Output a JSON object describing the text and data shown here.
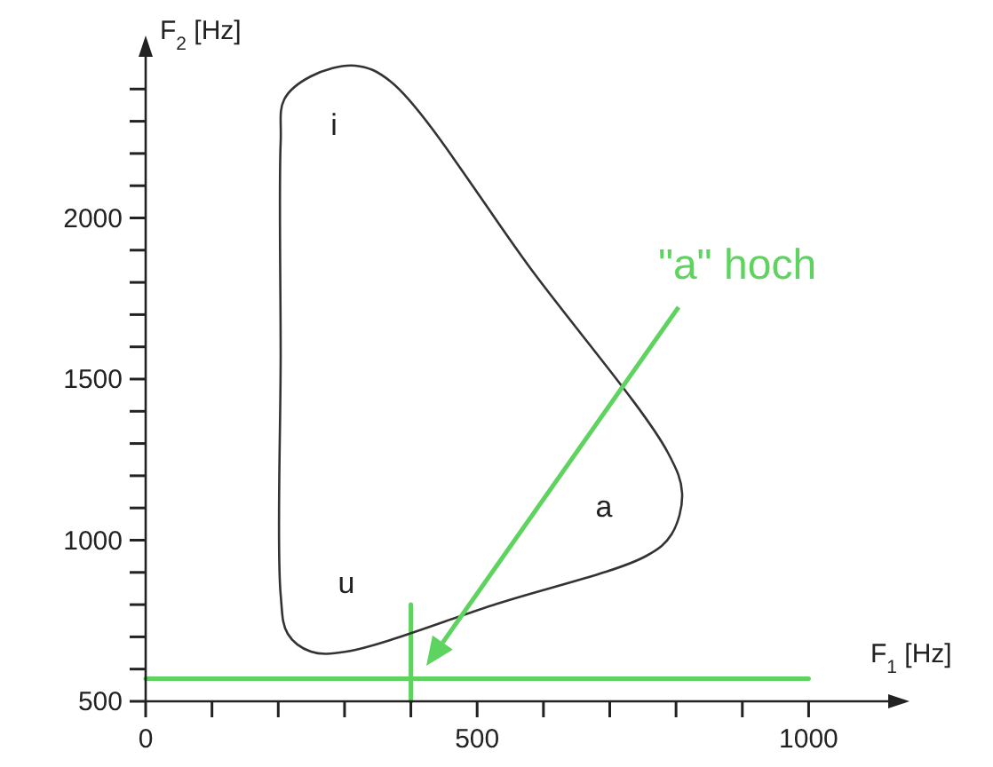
{
  "chart_data": {
    "type": "line",
    "xlabel": "F$_{1}$ [Hz]",
    "ylabel": "F$_{2}$ [Hz]",
    "xlim": [
      0,
      1120
    ],
    "ylim": [
      500,
      2500
    ],
    "xticks": [
      0,
      {
        "value": 100,
        "label": null
      },
      {
        "value": 200,
        "label": null
      },
      {
        "value": 300,
        "label": null
      },
      {
        "value": 400,
        "label": null
      },
      500,
      {
        "value": 600,
        "label": null
      },
      {
        "value": 700,
        "label": null
      },
      {
        "value": 800,
        "label": null
      },
      {
        "value": 900,
        "label": null
      },
      1000
    ],
    "yticks": [
      500,
      {
        "value": 600,
        "label": null
      },
      {
        "value": 700,
        "label": null
      },
      {
        "value": 800,
        "label": null
      },
      {
        "value": 900,
        "label": null
      },
      1000,
      {
        "value": 1100,
        "label": null
      },
      {
        "value": 1200,
        "label": null
      },
      {
        "value": 1300,
        "label": null
      },
      {
        "value": 1400,
        "label": null
      },
      1500,
      {
        "value": 1600,
        "label": null
      },
      {
        "value": 1700,
        "label": null
      },
      {
        "value": 1800,
        "label": null
      },
      {
        "value": 1900,
        "label": null
      },
      2000,
      {
        "value": 2100,
        "label": null
      },
      {
        "value": 2200,
        "label": null
      },
      {
        "value": 2300,
        "label": null
      },
      {
        "value": 2400,
        "label": null
      }
    ],
    "series": [
      {
        "color": "#5fd35f",
        "x": [
          0,
          1000
        ],
        "values": [
          570,
          570
        ]
      },
      {
        "color": "#5fd35f",
        "x": [
          400,
          400
        ],
        "values": [
          800,
          500
        ]
      }
    ],
    "annotations": [
      "i",
      "u",
      "a",
      "\"a\" hoch"
    ]
  }
}
